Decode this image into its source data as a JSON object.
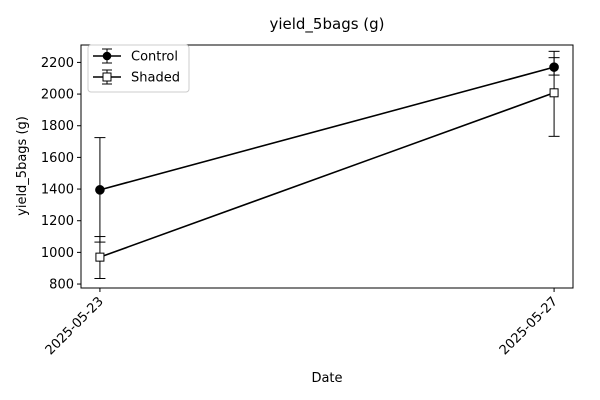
{
  "chart_data": {
    "type": "line",
    "title": "yield_5bags (g)",
    "xlabel": "Date",
    "ylabel": "yield_5bags (g)",
    "x": [
      "2025-05-23",
      "2025-05-27"
    ],
    "xlim": [
      "2025-05-22T20:00",
      "2025-05-27T04:00"
    ],
    "ylim": [
      775,
      2310
    ],
    "yticks": [
      800,
      1000,
      1200,
      1400,
      1600,
      1800,
      2000,
      2200
    ],
    "legend_position": "top-left",
    "grid": false,
    "series": [
      {
        "name": "Control",
        "marker": "filled-circle",
        "color": "#000000",
        "values": [
          1395,
          2170
        ],
        "err_low": [
          1065,
          2120
        ],
        "err_high": [
          1725,
          2270
        ]
      },
      {
        "name": "Shaded",
        "marker": "open-square",
        "color": "#000000",
        "values": [
          970,
          2008
        ],
        "err_low": [
          835,
          1733
        ],
        "err_high": [
          1100,
          2230
        ]
      }
    ]
  }
}
